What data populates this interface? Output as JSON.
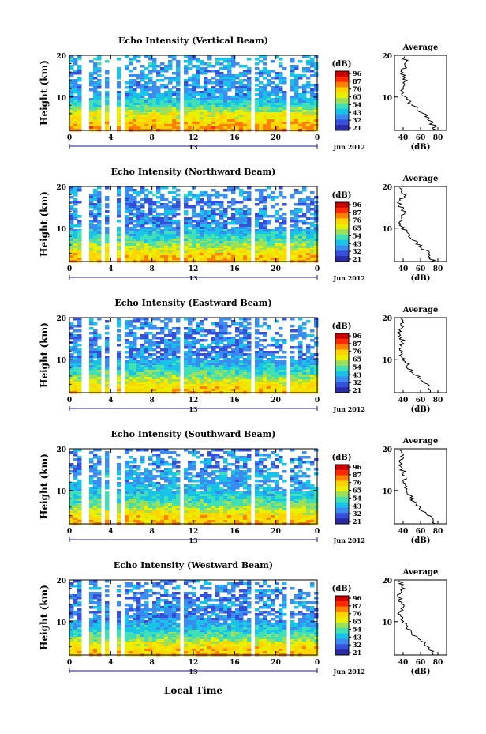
{
  "figure": {
    "x_axis_label": "Local Time",
    "date_label": "Jun 2012",
    "colorbar_unit": "(dB)",
    "colorbar_ticks": [
      "96",
      "87",
      "76",
      "65",
      "54",
      "43",
      "32",
      "21"
    ],
    "colorbar_colors": [
      "#cc0000",
      "#ff2a00",
      "#ff7f00",
      "#ffd400",
      "#e8f000",
      "#9ce05a",
      "#3ee0b4",
      "#17c4e8",
      "#3a8cf0",
      "#3650dc",
      "#2a2aa8"
    ],
    "avg_title": "Average",
    "avg_xlabel": "(dB)",
    "avg_xticks": [
      "40",
      "60",
      "80"
    ],
    "y_label": "Height (km)",
    "y_ticks": [
      "20",
      "10"
    ],
    "x_ticks": [
      "0",
      "4",
      "8",
      "12",
      "16",
      "20",
      "0"
    ],
    "day_marker": "13"
  },
  "chart_data": [
    {
      "type": "heatmap",
      "title": "Echo Intensity (Vertical Beam)",
      "xlabel": "Local Time",
      "ylabel": "Height (km)",
      "xlim": [
        0,
        24
      ],
      "ylim": [
        2,
        20
      ],
      "zlim": [
        21,
        96
      ],
      "zunit": "dB",
      "gaps_hours": [
        [
          1.0,
          1.8
        ],
        [
          3.0,
          3.4
        ],
        [
          3.9,
          4.4
        ],
        [
          4.9,
          5.3
        ],
        [
          5.6,
          5.9
        ],
        [
          10.7,
          11.1
        ],
        [
          17.6,
          18.0
        ],
        [
          21.1,
          21.4
        ]
      ],
      "profile": {
        "height_km": [
          2,
          4,
          6,
          8,
          10,
          12,
          14,
          16,
          18,
          20
        ],
        "average_db": [
          78,
          72,
          64,
          50,
          42,
          38,
          42,
          38,
          44,
          40
        ]
      }
    },
    {
      "type": "heatmap",
      "title": "Echo Intensity (Northward Beam)",
      "xlabel": "Local Time",
      "ylabel": "Height (km)",
      "xlim": [
        0,
        24
      ],
      "ylim": [
        2,
        20
      ],
      "zlim": [
        21,
        96
      ],
      "zunit": "dB",
      "gaps_hours": [
        [
          1.0,
          1.8
        ],
        [
          3.0,
          3.4
        ],
        [
          3.9,
          4.4
        ],
        [
          4.9,
          5.3
        ],
        [
          5.6,
          5.9
        ],
        [
          10.7,
          11.1
        ],
        [
          17.6,
          18.0
        ],
        [
          21.1,
          21.4
        ]
      ],
      "profile": {
        "height_km": [
          2,
          4,
          6,
          8,
          10,
          12,
          14,
          16,
          18,
          20
        ],
        "average_db": [
          74,
          70,
          58,
          48,
          40,
          36,
          40,
          35,
          42,
          36
        ]
      }
    },
    {
      "type": "heatmap",
      "title": "Echo Intensity (Eastward Beam)",
      "xlabel": "Local Time",
      "ylabel": "Height (km)",
      "xlim": [
        0,
        24
      ],
      "ylim": [
        2,
        20
      ],
      "zlim": [
        21,
        96
      ],
      "zunit": "dB",
      "gaps_hours": [
        [
          1.0,
          1.8
        ],
        [
          3.0,
          3.4
        ],
        [
          3.9,
          4.4
        ],
        [
          4.9,
          5.3
        ],
        [
          5.6,
          5.9
        ],
        [
          10.7,
          11.1
        ],
        [
          17.6,
          18.0
        ],
        [
          21.1,
          21.4
        ]
      ],
      "profile": {
        "height_km": [
          2,
          4,
          6,
          8,
          10,
          12,
          14,
          16,
          18,
          20
        ],
        "average_db": [
          72,
          68,
          56,
          47,
          40,
          36,
          40,
          35,
          40,
          36
        ]
      }
    },
    {
      "type": "heatmap",
      "title": "Echo Intensity (Southward Beam)",
      "xlabel": "Local Time",
      "ylabel": "Height (km)",
      "xlim": [
        0,
        24
      ],
      "ylim": [
        2,
        20
      ],
      "zlim": [
        21,
        96
      ],
      "zunit": "dB",
      "gaps_hours": [
        [
          1.0,
          1.8
        ],
        [
          3.0,
          3.4
        ],
        [
          3.9,
          4.4
        ],
        [
          4.9,
          5.3
        ],
        [
          5.6,
          5.9
        ],
        [
          10.7,
          11.1
        ],
        [
          17.6,
          18.0
        ],
        [
          21.1,
          21.4
        ]
      ],
      "profile": {
        "height_km": [
          2,
          4,
          6,
          8,
          10,
          12,
          14,
          16,
          18,
          20
        ],
        "average_db": [
          74,
          70,
          58,
          50,
          44,
          40,
          42,
          36,
          40,
          36
        ]
      }
    },
    {
      "type": "heatmap",
      "title": "Echo Intensity (Westward Beam)",
      "xlabel": "Local Time",
      "ylabel": "Height (km)",
      "xlim": [
        0,
        24
      ],
      "ylim": [
        2,
        20
      ],
      "zlim": [
        21,
        96
      ],
      "zunit": "dB",
      "gaps_hours": [
        [
          1.0,
          1.8
        ],
        [
          3.0,
          3.4
        ],
        [
          3.9,
          4.4
        ],
        [
          4.9,
          5.3
        ],
        [
          5.6,
          5.9
        ],
        [
          10.7,
          11.1
        ],
        [
          17.6,
          18.0
        ],
        [
          21.1,
          21.4
        ]
      ],
      "profile": {
        "height_km": [
          2,
          4,
          6,
          8,
          10,
          12,
          14,
          16,
          18,
          20
        ],
        "average_db": [
          74,
          70,
          56,
          47,
          40,
          36,
          40,
          35,
          40,
          36
        ]
      }
    }
  ]
}
